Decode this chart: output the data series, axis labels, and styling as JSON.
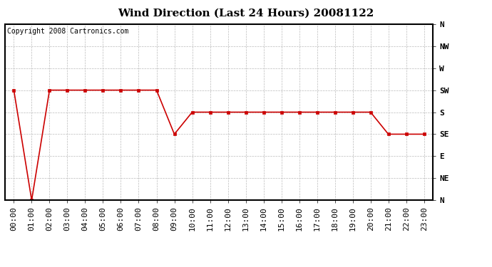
{
  "title": "Wind Direction (Last 24 Hours) 20081122",
  "copyright": "Copyright 2008 Cartronics.com",
  "line_color": "#cc0000",
  "marker": "s",
  "marker_size": 3,
  "background_color": "#ffffff",
  "grid_color": "#bbbbbb",
  "ytick_labels": [
    "N",
    "NE",
    "E",
    "SE",
    "S",
    "SW",
    "W",
    "NW",
    "N"
  ],
  "ytick_values": [
    0,
    45,
    90,
    135,
    180,
    225,
    270,
    315,
    360
  ],
  "ylim": [
    0,
    360
  ],
  "xlim": [
    -0.5,
    23.5
  ],
  "x_hours": [
    0,
    1,
    2,
    3,
    4,
    5,
    6,
    7,
    8,
    9,
    10,
    11,
    12,
    13,
    14,
    15,
    16,
    17,
    18,
    19,
    20,
    21,
    22,
    23
  ],
  "x_labels": [
    "00:00",
    "01:00",
    "02:00",
    "03:00",
    "04:00",
    "05:00",
    "06:00",
    "07:00",
    "08:00",
    "09:00",
    "10:00",
    "11:00",
    "12:00",
    "13:00",
    "14:00",
    "15:00",
    "16:00",
    "17:00",
    "18:00",
    "19:00",
    "20:00",
    "21:00",
    "22:00",
    "23:00"
  ],
  "y_values": [
    225,
    0,
    225,
    225,
    225,
    225,
    225,
    225,
    225,
    135,
    180,
    180,
    180,
    180,
    180,
    180,
    180,
    180,
    180,
    180,
    180,
    135,
    135,
    135
  ],
  "title_fontsize": 11,
  "tick_fontsize": 8,
  "copyright_fontsize": 7
}
